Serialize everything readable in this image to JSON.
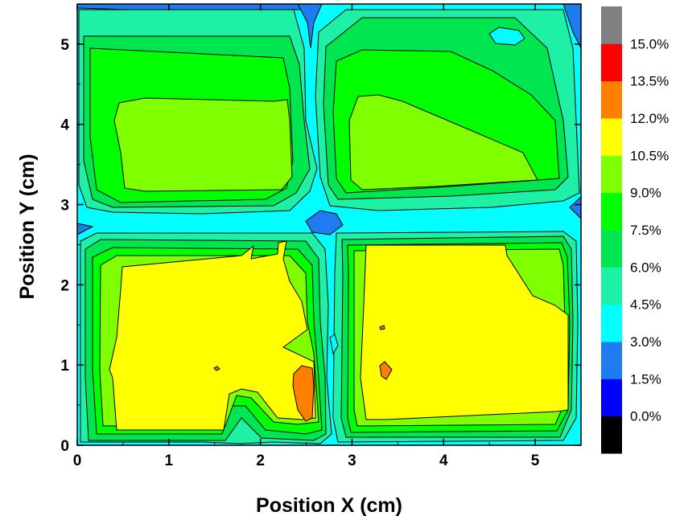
{
  "chart_data": {
    "type": "heatmap",
    "subtype": "filled-contour",
    "title": "",
    "xlabel": "Position X (cm)",
    "ylabel": "Position Y (cm)",
    "xlim": [
      0,
      5.5
    ],
    "ylim": [
      0,
      5.5
    ],
    "x_ticks": [
      "0",
      "1",
      "2",
      "3",
      "4",
      "5"
    ],
    "y_ticks": [
      "0",
      "1",
      "2",
      "3",
      "4",
      "5"
    ],
    "colorbar": {
      "labels": [
        "0.0%",
        "1.5%",
        "3.0%",
        "4.5%",
        "6.0%",
        "7.5%",
        "9.0%",
        "10.5%",
        "12.0%",
        "13.5%",
        "15.0%"
      ],
      "levels": [
        {
          "range": [
            -1.5,
            0.0
          ],
          "color": "#000000"
        },
        {
          "range": [
            0.0,
            1.5
          ],
          "color": "#0000ff"
        },
        {
          "range": [
            1.5,
            3.0
          ],
          "color": "#1e7bf0"
        },
        {
          "range": [
            3.0,
            4.5
          ],
          "color": "#00ffff"
        },
        {
          "range": [
            4.5,
            6.0
          ],
          "color": "#1ef0a5"
        },
        {
          "range": [
            6.0,
            7.5
          ],
          "color": "#00e650"
        },
        {
          "range": [
            7.5,
            9.0
          ],
          "color": "#00ff00"
        },
        {
          "range": [
            9.0,
            10.5
          ],
          "color": "#80ff00"
        },
        {
          "range": [
            10.5,
            12.0
          ],
          "color": "#ffff00"
        },
        {
          "range": [
            12.0,
            13.5
          ],
          "color": "#ff8000"
        },
        {
          "range": [
            13.5,
            15.0
          ],
          "color": "#ff0000"
        },
        {
          "range": [
            15.0,
            16.5
          ],
          "color": "#808080"
        }
      ]
    },
    "regions": [
      {
        "name": "upper-left cell",
        "x_range": [
          0.1,
          2.6
        ],
        "y_range": [
          2.9,
          5.3
        ],
        "peak_level": "9.0%-10.5%"
      },
      {
        "name": "upper-right cell",
        "x_range": [
          2.9,
          5.4
        ],
        "y_range": [
          2.9,
          5.3
        ],
        "peak_level": "9.0%-10.5%"
      },
      {
        "name": "lower-left cell",
        "x_range": [
          0.1,
          2.7
        ],
        "y_range": [
          0.1,
          2.6
        ],
        "peak_level": "10.5%-12.0%",
        "hotspot": {
          "x": 2.5,
          "y": 0.7,
          "level": "12.0%-13.5%"
        }
      },
      {
        "name": "lower-right cell",
        "x_range": [
          2.9,
          5.4
        ],
        "y_range": [
          0.1,
          2.6
        ],
        "peak_level": "10.5%-12.0%",
        "hotspot": {
          "x": 3.35,
          "y": 0.97,
          "level": "12.0%-13.5%"
        }
      }
    ]
  }
}
